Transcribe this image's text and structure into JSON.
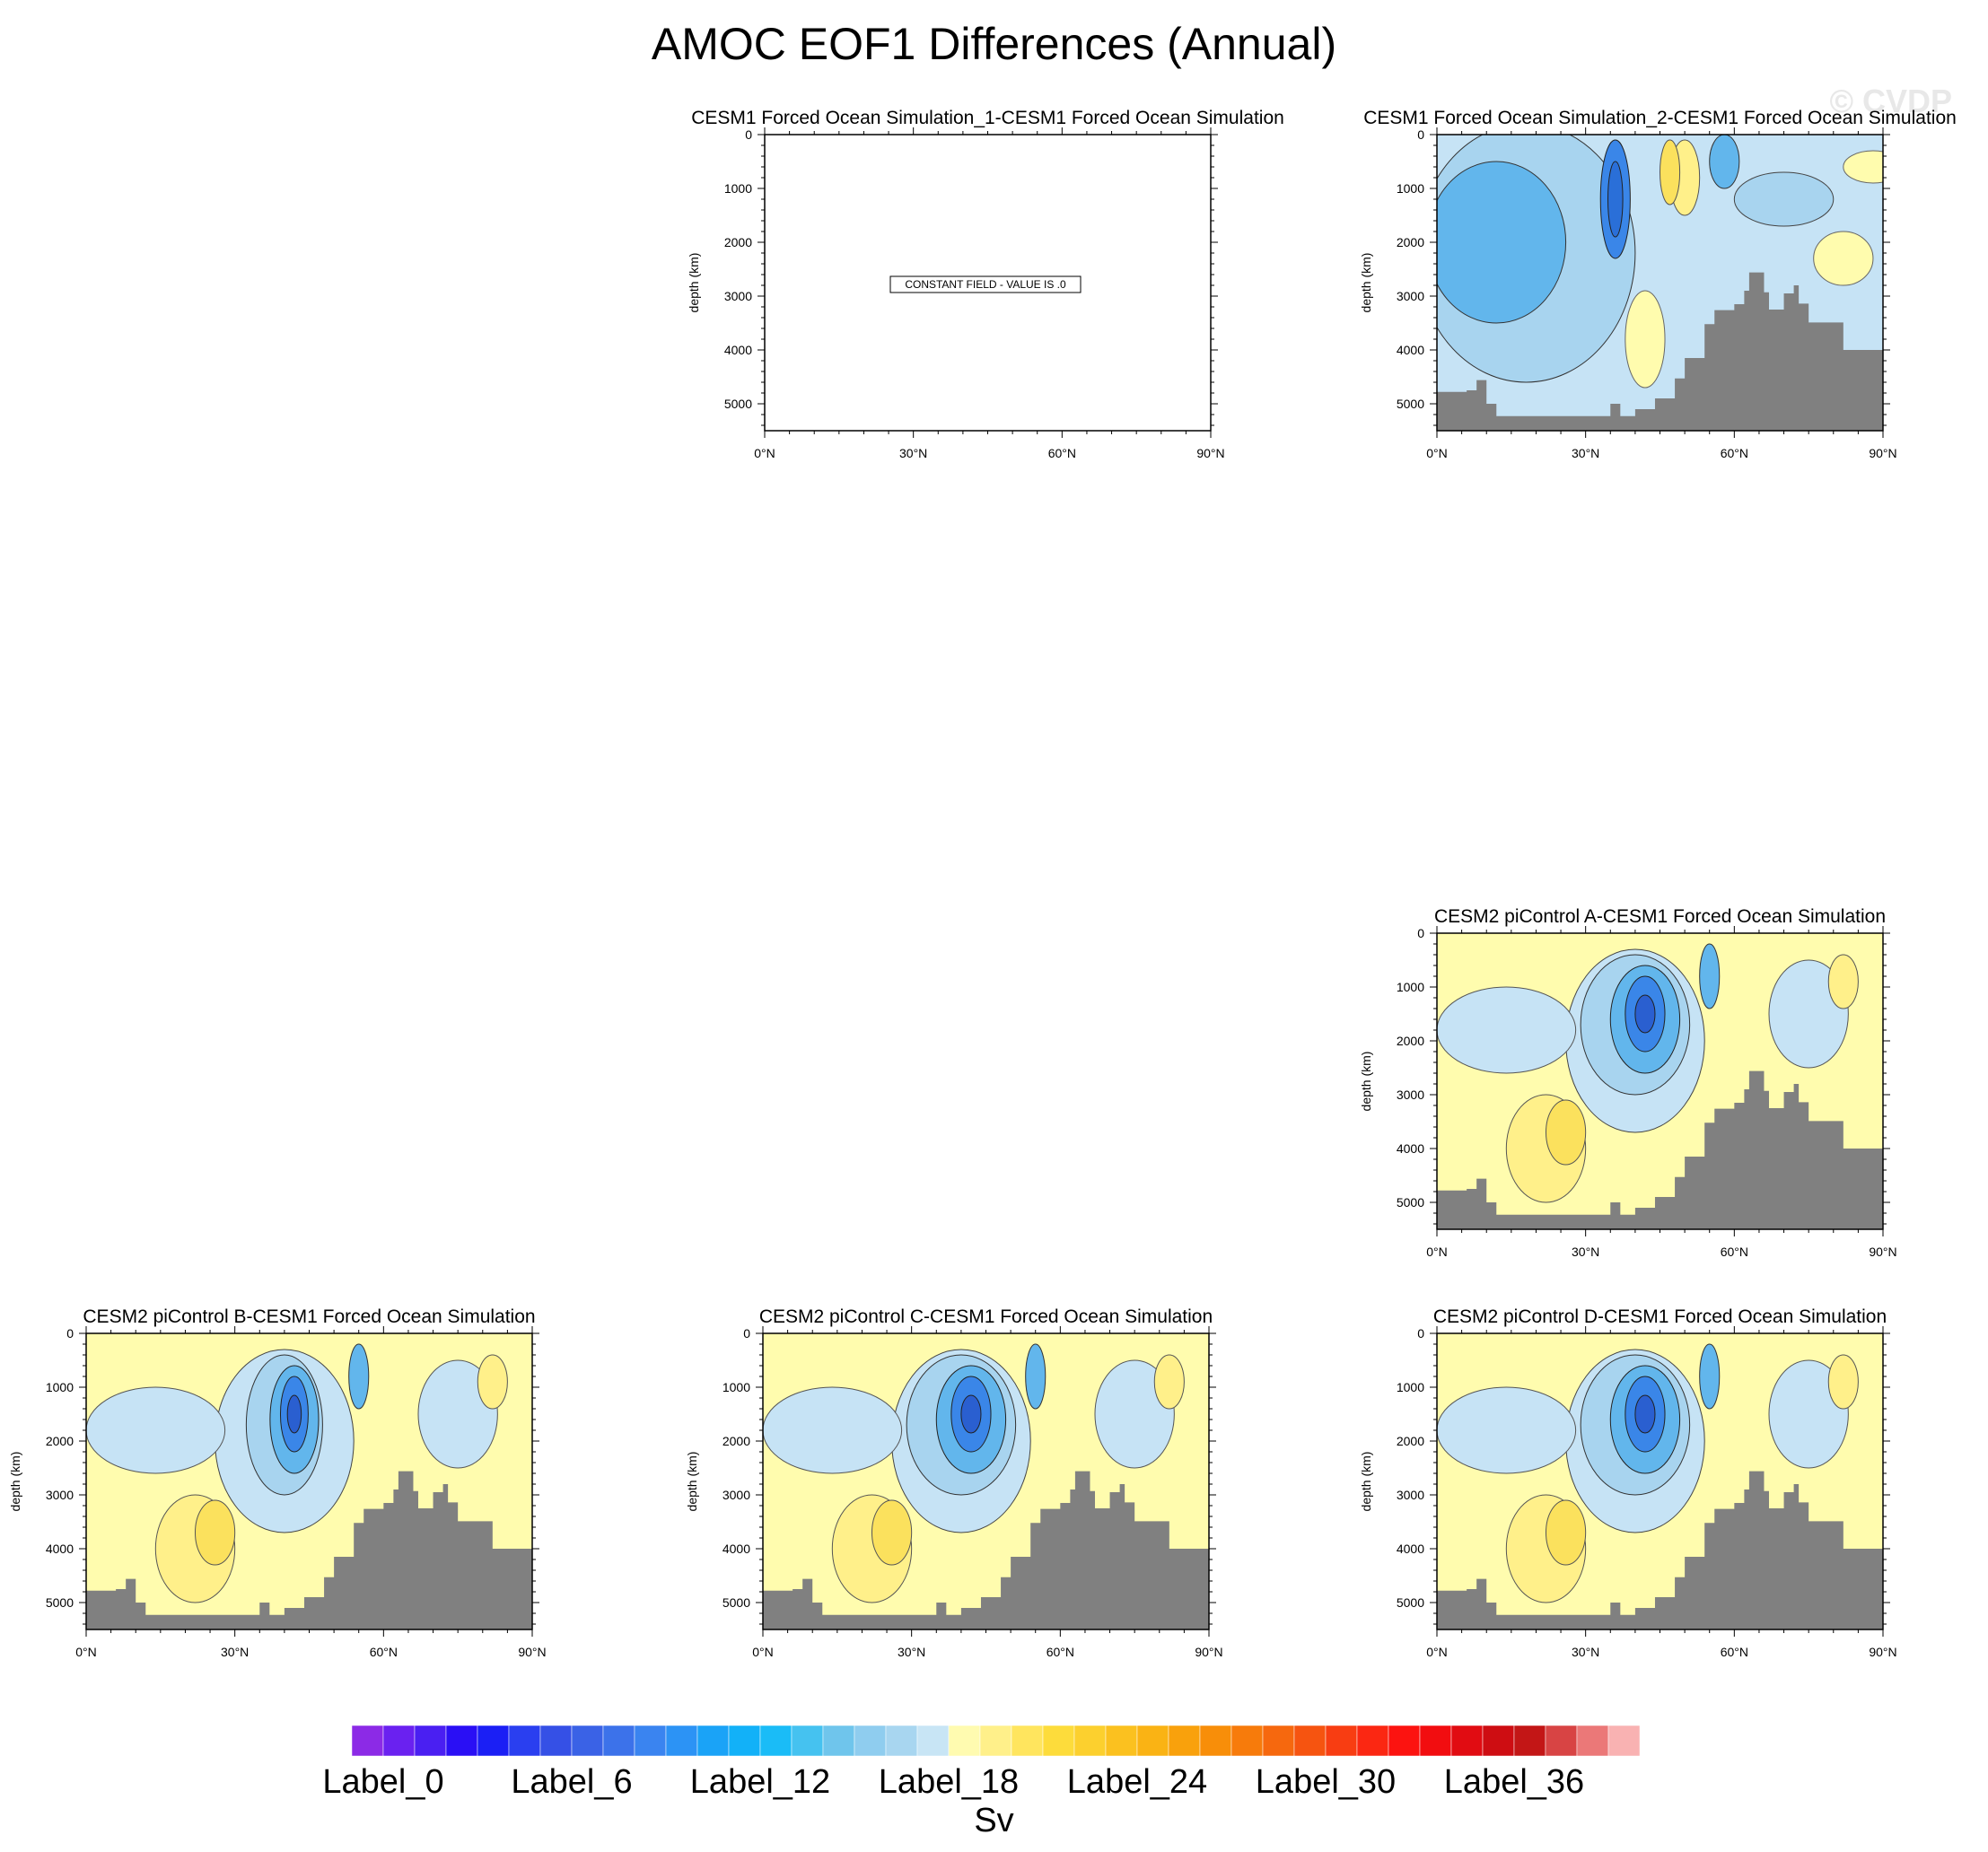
{
  "title": "AMOC EOF1 Differences (Annual)",
  "watermark": "© CVDP",
  "colors": {
    "land": "#808080",
    "blue_light": "#c6e3f5",
    "blue_mid": "#a8d4ef",
    "blue_deep": "#62b6ec",
    "blue_core": "#3a86e8",
    "yellow_light": "#fffcae",
    "yellow_mid": "#fff08a",
    "yellow_deep": "#fbe15d"
  },
  "chart_data": [
    {
      "type": "contour",
      "title": "CESM1 Forced Ocean Simulation_1-CESM1 Forced Ocean Simulation",
      "ylabel": "depth (km)",
      "xlim": [
        0,
        90
      ],
      "ylim": [
        0,
        5500
      ],
      "xticks": [
        "0°N",
        "30°N",
        "60°N",
        "90°N"
      ],
      "yticks": [
        "0",
        "1000",
        "2000",
        "3000",
        "4000",
        "5000"
      ],
      "constant_field_label": "CONSTANT FIELD - VALUE IS .0",
      "mode": "constant"
    },
    {
      "type": "contour",
      "title": "CESM1 Forced Ocean Simulation_2-CESM1 Forced Ocean Simulation",
      "ylabel": "depth (km)",
      "xlim": [
        0,
        90
      ],
      "ylim": [
        0,
        5500
      ],
      "xticks": [
        "0°N",
        "30°N",
        "60°N",
        "90°N"
      ],
      "yticks": [
        "0",
        "1000",
        "2000",
        "3000",
        "4000",
        "5000"
      ],
      "mode": "blue"
    },
    {
      "type": "contour",
      "title": "CESM2 piControl A-CESM1 Forced Ocean Simulation",
      "ylabel": "depth (km)",
      "xlim": [
        0,
        90
      ],
      "ylim": [
        0,
        5500
      ],
      "xticks": [
        "0°N",
        "30°N",
        "60°N",
        "90°N"
      ],
      "yticks": [
        "0",
        "1000",
        "2000",
        "3000",
        "4000",
        "5000"
      ],
      "mode": "a"
    },
    {
      "type": "contour",
      "title": "CESM2 piControl B-CESM1 Forced Ocean Simulation",
      "ylabel": "depth (km)",
      "xlim": [
        0,
        90
      ],
      "ylim": [
        0,
        5500
      ],
      "xticks": [
        "0°N",
        "30°N",
        "60°N",
        "90°N"
      ],
      "yticks": [
        "0",
        "1000",
        "2000",
        "3000",
        "4000",
        "5000"
      ],
      "mode": "b"
    },
    {
      "type": "contour",
      "title": "CESM2 piControl C-CESM1 Forced Ocean Simulation",
      "ylabel": "depth (km)",
      "xlim": [
        0,
        90
      ],
      "ylim": [
        0,
        5500
      ],
      "xticks": [
        "0°N",
        "30°N",
        "60°N",
        "90°N"
      ],
      "yticks": [
        "0",
        "1000",
        "2000",
        "3000",
        "4000",
        "5000"
      ],
      "mode": "c"
    },
    {
      "type": "contour",
      "title": "CESM2 piControl D-CESM1 Forced Ocean Simulation",
      "ylabel": "depth (km)",
      "xlim": [
        0,
        90
      ],
      "ylim": [
        0,
        5500
      ],
      "xticks": [
        "0°N",
        "30°N",
        "60°N",
        "90°N"
      ],
      "yticks": [
        "0",
        "1000",
        "2000",
        "3000",
        "4000",
        "5000"
      ],
      "mode": "d"
    }
  ],
  "colorbar": {
    "units": "Sv",
    "labels": [
      "Label_0",
      "Label_6",
      "Label_12",
      "Label_18",
      "Label_24",
      "Label_30",
      "Label_36"
    ],
    "colors": [
      "#8c2ae6",
      "#6a21f0",
      "#4a1ff2",
      "#2a0ff5",
      "#1b1ff5",
      "#2a3ff0",
      "#3550e6",
      "#3a62e6",
      "#3c72ea",
      "#3a84f0",
      "#2c93f5",
      "#1aa3f7",
      "#12b1f8",
      "#1abcf7",
      "#45c2f0",
      "#6fc5ec",
      "#8fcdef",
      "#a8d6f0",
      "#c8e5f5",
      "#fffbb0",
      "#fff08a",
      "#ffe55e",
      "#fddc3b",
      "#fcd02e",
      "#fbc11f",
      "#fab314",
      "#f9a10c",
      "#f88e09",
      "#f77b0b",
      "#f6680e",
      "#f65410",
      "#f83d12",
      "#fb2712",
      "#fc1310",
      "#f20d10",
      "#e10c12",
      "#ce0d12",
      "#c31616",
      "#d84444",
      "#eb7878",
      "#f9b2b2"
    ]
  }
}
